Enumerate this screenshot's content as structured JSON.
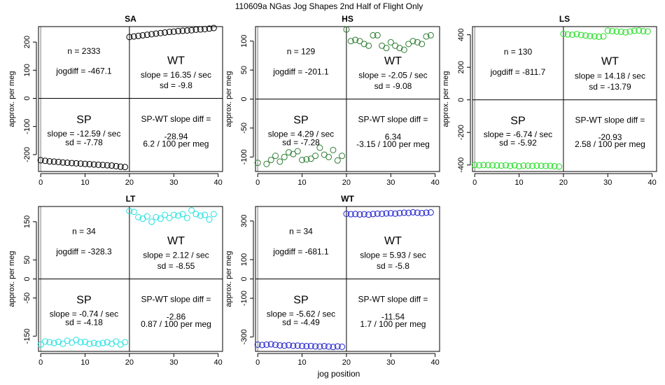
{
  "figure": {
    "title": "110609a   NGas Jog Shapes 2nd Half of Flight Only",
    "xlabel": "jog position"
  },
  "chart_data": [
    {
      "type": "scatter",
      "panel": "SA",
      "title": "SA",
      "ylabel": "approx. per meg",
      "color": "#000000",
      "xlim": [
        -0.5,
        41
      ],
      "ylim": [
        -260,
        255
      ],
      "xticks": [
        0,
        10,
        20,
        30,
        40
      ],
      "yticks": [
        -200,
        -100,
        0,
        100,
        200
      ],
      "sp_x": [
        0,
        1,
        2,
        3,
        4,
        5,
        6,
        7,
        8,
        9,
        10,
        11,
        12,
        13,
        14,
        15,
        16,
        17,
        18,
        19
      ],
      "sp_y": [
        -220,
        -222,
        -224,
        -225,
        -226,
        -228,
        -229,
        -230,
        -231,
        -232,
        -233,
        -234,
        -235,
        -236,
        -237,
        -238,
        -239,
        -241,
        -243,
        -244
      ],
      "wt_x": [
        20,
        21,
        22,
        23,
        24,
        25,
        26,
        27,
        28,
        29,
        30,
        31,
        32,
        33,
        34,
        35,
        36,
        37,
        38,
        39
      ],
      "wt_y": [
        218,
        220,
        222,
        224,
        226,
        228,
        230,
        232,
        234,
        236,
        237,
        239,
        240,
        241,
        242,
        244,
        245,
        246,
        248,
        250
      ],
      "wt_label": "WT",
      "sp_label": "SP",
      "n_text": "n = 2333",
      "jogdiff_text": "jogdiff = -467.1",
      "wt_slope_text": "slope = 16.35 / sec",
      "wt_sd_text": "sd = -9.8",
      "sp_slope_text": "slope = -12.59 / sec",
      "sp_sd_text": "sd = -7.78",
      "diff_title": "SP-WT slope diff =",
      "diff_value": "-28.94",
      "diff_per": "6.2 / 100 per meg"
    },
    {
      "type": "scatter",
      "panel": "HS",
      "title": "HS",
      "ylabel": "approx. per meg",
      "color": "#2e7d32",
      "xlim": [
        -0.5,
        41
      ],
      "ylim": [
        -125,
        125
      ],
      "xticks": [
        0,
        10,
        20,
        30,
        40
      ],
      "yticks": [
        -100,
        -50,
        0,
        50,
        100
      ],
      "sp_x": [
        0,
        2,
        3,
        4,
        5,
        6,
        7,
        8,
        9,
        10,
        11,
        12,
        13,
        14,
        15,
        16,
        17,
        18,
        19
      ],
      "sp_y": [
        -110,
        -112,
        -105,
        -98,
        -108,
        -100,
        -92,
        -95,
        -90,
        -105,
        -104,
        -103,
        -98,
        -84,
        -96,
        -100,
        -88,
        -106,
        -98
      ],
      "wt_x": [
        20,
        21,
        22,
        23,
        24,
        25,
        26,
        27,
        28,
        29,
        30,
        31,
        32,
        33,
        34,
        35,
        36,
        37,
        38,
        39
      ],
      "wt_y": [
        120,
        100,
        102,
        100,
        95,
        92,
        110,
        110,
        92,
        88,
        98,
        92,
        88,
        85,
        95,
        100,
        98,
        95,
        108,
        110
      ],
      "wt_label": "WT",
      "sp_label": "SP",
      "n_text": "n = 129",
      "jogdiff_text": "jogdiff = -201.1",
      "wt_slope_text": "slope = -2.05 / sec",
      "wt_sd_text": "sd = -9.08",
      "sp_slope_text": "slope = 4.29 / sec",
      "sp_sd_text": "sd = -7.28",
      "diff_title": "SP-WT slope diff =",
      "diff_value": "6.34",
      "diff_per": "-3.15 / 100 per meg"
    },
    {
      "type": "scatter",
      "panel": "LS",
      "title": "LS",
      "ylabel": "approx. per meg",
      "color": "#22dd22",
      "xlim": [
        -0.5,
        41
      ],
      "ylim": [
        -440,
        450
      ],
      "xticks": [
        0,
        10,
        20,
        30,
        40
      ],
      "yticks": [
        -400,
        -200,
        0,
        200,
        400
      ],
      "sp_x": [
        0,
        1,
        2,
        3,
        4,
        5,
        6,
        7,
        8,
        9,
        10,
        11,
        12,
        13,
        14,
        15,
        16,
        17,
        18,
        19
      ],
      "sp_y": [
        -400,
        -402,
        -400,
        -401,
        -402,
        -403,
        -404,
        -402,
        -406,
        -402,
        -408,
        -404,
        -404,
        -406,
        -404,
        -405,
        -406,
        -405,
        -408,
        -410
      ],
      "wt_x": [
        20,
        21,
        22,
        23,
        24,
        25,
        26,
        27,
        28,
        29,
        30,
        31,
        32,
        33,
        34,
        35,
        36,
        37,
        38,
        39
      ],
      "wt_y": [
        405,
        402,
        400,
        404,
        398,
        395,
        392,
        390,
        388,
        390,
        425,
        422,
        420,
        418,
        415,
        420,
        424,
        426,
        422,
        420
      ],
      "wt_label": "WT",
      "sp_label": "SP",
      "n_text": "n = 130",
      "jogdiff_text": "jogdiff = -811.7",
      "wt_slope_text": "slope = 14.18 / sec",
      "wt_sd_text": "sd = -13.79",
      "sp_slope_text": "slope = -6.74 / sec",
      "sp_sd_text": "sd = -5.92",
      "diff_title": "SP-WT slope diff =",
      "diff_value": "-20.93",
      "diff_per": "2.58 / 100 per meg"
    },
    {
      "type": "scatter",
      "panel": "LT",
      "title": "LT",
      "ylabel": "approx. per meg",
      "color": "#22e0e0",
      "xlim": [
        -0.5,
        41
      ],
      "ylim": [
        -190,
        190
      ],
      "xticks": [
        0,
        10,
        20,
        30,
        40
      ],
      "yticks": [
        -150,
        -50,
        0,
        50,
        150
      ],
      "sp_x": [
        0,
        1,
        2,
        3,
        4,
        5,
        6,
        7,
        8,
        9,
        10,
        11,
        12,
        13,
        14,
        15,
        16,
        17,
        18,
        19
      ],
      "sp_y": [
        -172,
        -164,
        -166,
        -168,
        -165,
        -170,
        -162,
        -167,
        -160,
        -166,
        -165,
        -170,
        -168,
        -170,
        -168,
        -166,
        -170,
        -164,
        -172,
        -166
      ],
      "wt_x": [
        20,
        21,
        22,
        23,
        24,
        25,
        26,
        27,
        28,
        29,
        30,
        31,
        32,
        33,
        34,
        35,
        36,
        37,
        38,
        39
      ],
      "wt_y": [
        178,
        176,
        162,
        158,
        164,
        150,
        162,
        158,
        168,
        160,
        168,
        166,
        170,
        160,
        180,
        170,
        166,
        168,
        156,
        170
      ],
      "wt_label": "WT",
      "sp_label": "SP",
      "n_text": "n = 34",
      "jogdiff_text": "jogdiff = -328.3",
      "wt_slope_text": "slope = 2.12 / sec",
      "wt_sd_text": "sd = -8.55",
      "sp_slope_text": "slope = -0.74 / sec",
      "sp_sd_text": "sd = -4.18",
      "diff_title": "SP-WT slope diff =",
      "diff_value": "-2.86",
      "diff_per": "0.87 / 100 per meg"
    },
    {
      "type": "scatter",
      "panel": "WT",
      "title": "WT",
      "ylabel": "approx. per meg",
      "color": "#2222cc",
      "xlim": [
        -0.5,
        41
      ],
      "ylim": [
        -375,
        375
      ],
      "xticks": [
        0,
        10,
        20,
        30,
        40
      ],
      "yticks": [
        -300,
        -100,
        0,
        100,
        300
      ],
      "sp_x": [
        0,
        1,
        2,
        3,
        4,
        5,
        6,
        7,
        8,
        9,
        10,
        11,
        12,
        13,
        14,
        15,
        16,
        17,
        18,
        19
      ],
      "sp_y": [
        -340,
        -342,
        -340,
        -338,
        -341,
        -344,
        -345,
        -343,
        -346,
        -345,
        -347,
        -348,
        -347,
        -349,
        -350,
        -348,
        -350,
        -352,
        -349,
        -351
      ],
      "wt_x": [
        20,
        21,
        22,
        23,
        24,
        25,
        26,
        27,
        28,
        29,
        30,
        31,
        32,
        33,
        34,
        35,
        36,
        37,
        38,
        39
      ],
      "wt_y": [
        337,
        335,
        336,
        334,
        335,
        333,
        336,
        338,
        337,
        339,
        340,
        338,
        341,
        343,
        342,
        345,
        343,
        341,
        343,
        344
      ],
      "wt_label": "WT",
      "sp_label": "SP",
      "n_text": "n = 34",
      "jogdiff_text": "jogdiff = -681.1",
      "wt_slope_text": "slope = 5.93 / sec",
      "wt_sd_text": "sd = -5.8",
      "sp_slope_text": "slope = -5.62 / sec",
      "sp_sd_text": "sd = -4.49",
      "diff_title": "SP-WT slope diff =",
      "diff_value": "-11.54",
      "diff_per": "1.7 / 100 per meg"
    }
  ]
}
